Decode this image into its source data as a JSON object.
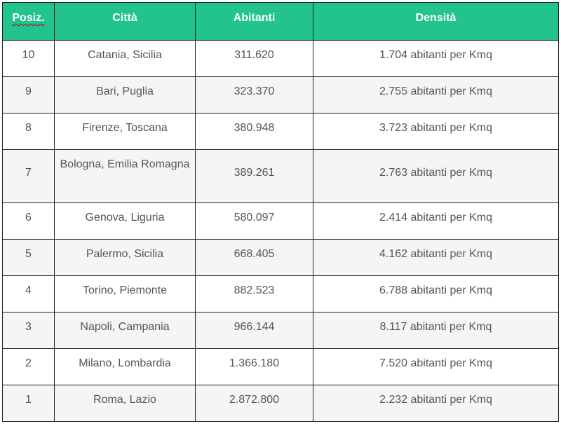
{
  "table": {
    "headers": [
      "Posiz.",
      "Città",
      "Abitanti",
      "Densità"
    ],
    "rows": [
      {
        "pos": "10",
        "city": "Catania, Sicilia",
        "population": "311.620",
        "density": "1.704 abitanti per Kmq"
      },
      {
        "pos": "9",
        "city": "Bari, Puglia",
        "population": "323.370",
        "density": "2.755 abitanti per Kmq"
      },
      {
        "pos": "8",
        "city": "Firenze, Toscana",
        "population": "380.948",
        "density": "3.723 abitanti per Kmq"
      },
      {
        "pos": "7",
        "city": "Bologna, Emilia Romagna",
        "population": "389.261",
        "density": "2.763 abitanti per Kmq"
      },
      {
        "pos": "6",
        "city": "Genova, Liguria",
        "population": "580.097",
        "density": "2.414 abitanti per Kmq"
      },
      {
        "pos": "5",
        "city": "Palermo, Sicilia",
        "population": "668.405",
        "density": "4.162 abitanti per Kmq"
      },
      {
        "pos": "4",
        "city": "Torino, Piemonte",
        "population": "882.523",
        "density": "6.788 abitanti per Kmq"
      },
      {
        "pos": "3",
        "city": "Napoli, Campania",
        "population": "966.144",
        "density": "8.117 abitanti per Kmq"
      },
      {
        "pos": "2",
        "city": "Milano, Lombardia",
        "population": "1.366.180",
        "density": "7.520 abitanti per Kmq"
      },
      {
        "pos": "1",
        "city": "Roma, Lazio",
        "population": "2.872.800",
        "density": "2.232 abitanti per Kmq"
      }
    ]
  },
  "colors": {
    "header_bg": "#22c38e",
    "header_text": "#ffffff",
    "cell_text": "#555555",
    "alt_row_bg": "#f5f5f5",
    "border": "#1f1f1f"
  }
}
